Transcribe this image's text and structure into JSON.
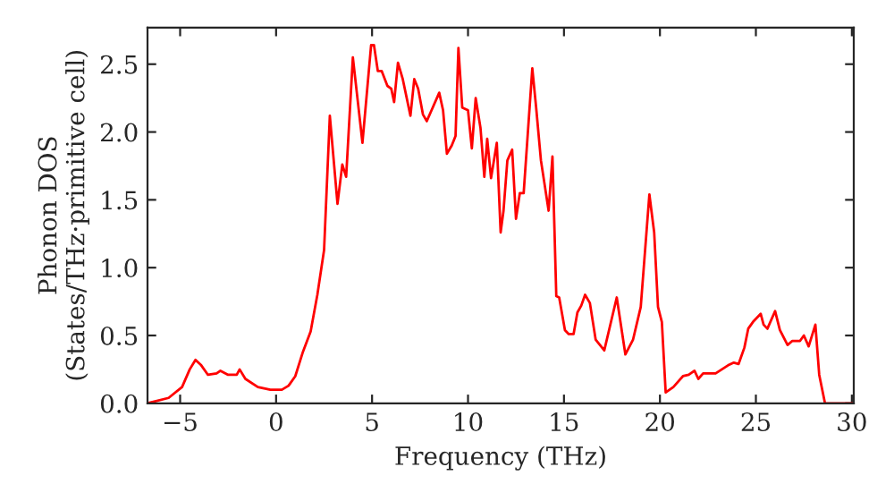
{
  "chart_data": {
    "type": "line",
    "xlabel": "Frequency (THz)",
    "ylabel": "Phonon DOS\n(States/THz·primitive cell)",
    "xlim": [
      -6.7,
      30.1
    ],
    "xticks": [
      {
        "value": -5,
        "label": "−5"
      },
      0,
      5,
      10,
      15,
      20,
      25,
      30
    ],
    "ylim": [
      0,
      2.77
    ],
    "yticks": [
      {
        "value": 0,
        "label": "0.0"
      },
      0.5,
      {
        "value": 1,
        "label": "1.0"
      },
      1.5,
      {
        "value": 2,
        "label": "2.0"
      },
      2.5
    ],
    "marker": "none",
    "line_style": "solid",
    "series": [
      {
        "color": "#ff0000",
        "x": [
          -6.7,
          -5.6,
          -4.9,
          -4.5,
          -4.2,
          -3.9,
          -3.55,
          -3.1,
          -2.9,
          -2.5,
          -2.05,
          -1.9,
          -1.6,
          -0.95,
          -0.3,
          0.3,
          0.65,
          1.0,
          1.4,
          1.8,
          2.15,
          2.5,
          2.8,
          3.2,
          3.45,
          3.65,
          4.0,
          4.5,
          4.95,
          5.1,
          5.3,
          5.5,
          5.8,
          6.0,
          6.15,
          6.35,
          6.6,
          7.0,
          7.2,
          7.4,
          7.65,
          7.85,
          8.1,
          8.5,
          8.7,
          8.9,
          9.15,
          9.35,
          9.5,
          9.7,
          10.0,
          10.2,
          10.4,
          10.65,
          10.85,
          11.0,
          11.2,
          11.5,
          11.7,
          11.85,
          12.05,
          12.3,
          12.5,
          12.7,
          12.9,
          13.35,
          13.55,
          13.8,
          14.2,
          14.4,
          14.6,
          14.75,
          15.05,
          15.25,
          15.5,
          15.7,
          15.9,
          16.1,
          16.35,
          16.65,
          17.1,
          17.75,
          18.2,
          18.6,
          19.0,
          19.45,
          19.7,
          19.9,
          20.1,
          20.3,
          20.7,
          21.2,
          21.5,
          21.8,
          22.0,
          22.25,
          22.9,
          23.55,
          23.85,
          24.1,
          24.4,
          24.6,
          24.85,
          25.25,
          25.4,
          25.6,
          26.0,
          26.25,
          26.65,
          26.9,
          27.3,
          27.5,
          27.75,
          28.1,
          28.3,
          28.6,
          30.1
        ],
        "values": [
          0,
          0.04,
          0.12,
          0.25,
          0.32,
          0.28,
          0.21,
          0.22,
          0.24,
          0.21,
          0.21,
          0.25,
          0.18,
          0.12,
          0.1,
          0.1,
          0.13,
          0.2,
          0.38,
          0.53,
          0.8,
          1.13,
          2.12,
          1.47,
          1.76,
          1.67,
          2.55,
          1.92,
          2.64,
          2.64,
          2.45,
          2.45,
          2.34,
          2.32,
          2.22,
          2.51,
          2.39,
          2.12,
          2.39,
          2.32,
          2.13,
          2.08,
          2.16,
          2.29,
          2.16,
          1.84,
          1.9,
          1.97,
          2.62,
          2.18,
          2.16,
          1.88,
          2.25,
          2.03,
          1.67,
          1.95,
          1.66,
          1.92,
          1.26,
          1.42,
          1.79,
          1.87,
          1.36,
          1.55,
          1.55,
          2.47,
          2.18,
          1.79,
          1.42,
          1.82,
          0.79,
          0.78,
          0.54,
          0.51,
          0.51,
          0.67,
          0.72,
          0.8,
          0.74,
          0.47,
          0.39,
          0.78,
          0.36,
          0.47,
          0.71,
          1.54,
          1.26,
          0.71,
          0.6,
          0.08,
          0.12,
          0.2,
          0.21,
          0.24,
          0.18,
          0.22,
          0.22,
          0.28,
          0.3,
          0.29,
          0.41,
          0.55,
          0.6,
          0.66,
          0.58,
          0.55,
          0.68,
          0.54,
          0.43,
          0.46,
          0.46,
          0.5,
          0.42,
          0.58,
          0.21,
          0,
          0
        ]
      }
    ]
  }
}
